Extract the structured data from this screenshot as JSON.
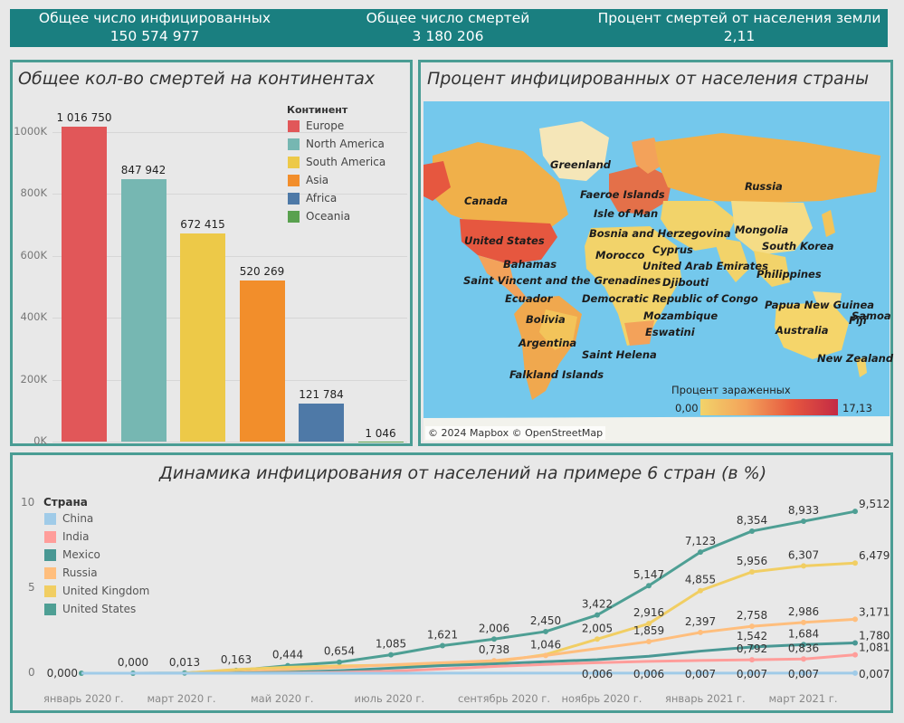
{
  "kpis": [
    {
      "label": "Общее число инфицированных",
      "value": "150 574 977"
    },
    {
      "label": "Общее число смертей",
      "value": "3 180 206"
    },
    {
      "label": "Процент смертей от населения земли",
      "value": "2,11"
    }
  ],
  "deaths_panel": {
    "title": "Общее кол-во смертей на континентах",
    "legend_title": "Континент",
    "y_ticks": [
      "0K",
      "200K",
      "400K",
      "600K",
      "800K",
      "1000K"
    ]
  },
  "map_panel": {
    "title": "Процент инфицированных от населения страны",
    "labels": [
      "Greenland",
      "Canada",
      "Faeroe Islands",
      "Isle of Man",
      "Russia",
      "United States",
      "Bosnia and Herzegovina",
      "Mongolia",
      "South Korea",
      "Cyprus",
      "Morocco",
      "United Arab Emirates",
      "Bahamas",
      "Philippines",
      "Djibouti",
      "Saint Vincent and the Grenadines",
      "Ecuador",
      "Democratic Republic of Congo",
      "Papua New Guinea",
      "Samoa",
      "Fiji",
      "Bolivia",
      "Mozambique",
      "Eswatini",
      "Australia",
      "Argentina",
      "Saint Helena",
      "New Zealand",
      "Falkland Islands"
    ],
    "legend_title": "Процент зараженных",
    "legend_min": "0,00",
    "legend_max": "17,13",
    "attribution": "© 2024 Mapbox © OpenStreetMap",
    "colors": {
      "ocean": "#74c8ec",
      "land_low": "#f2d36a",
      "land_high": "#c42a44"
    }
  },
  "line_panel": {
    "title": "Динамика инфицирования от населений на примере 6 стран (в %)",
    "legend_title": "Страна",
    "y_ticks": [
      "0",
      "5",
      "10"
    ],
    "x_ticks": [
      "январь 2020 г.",
      "март 2020 г.",
      "май 2020 г.",
      "июль 2020 г.",
      "сентябрь 2020 г.",
      "ноябрь 2020 г.",
      "январь 2021 г.",
      "март 2021 г."
    ]
  },
  "chart_data": [
    {
      "type": "bar",
      "title": "Общее кол-во смертей на континентах",
      "legend_title": "Континент",
      "categories": [
        "Europe",
        "North America",
        "South America",
        "Asia",
        "Africa",
        "Oceania"
      ],
      "values": [
        1016750,
        847942,
        672415,
        520269,
        121784,
        1046
      ],
      "value_labels": [
        "1 016 750",
        "847 942",
        "672 415",
        "520 269",
        "121 784",
        "1 046"
      ],
      "colors": [
        "#e15759",
        "#76b7b2",
        "#edc948",
        "#f28e2b",
        "#4e79a7",
        "#59a14f"
      ],
      "ylim": [
        0,
        1000000
      ],
      "legend_position": "top-right",
      "grid": true
    },
    {
      "type": "line",
      "title": "Динамика инфицирования от населений на примере 6 стран (в %)",
      "legend_title": "Страна",
      "x": [
        "2020-01-01",
        "2020-02-01",
        "2020-03-01",
        "2020-04-01",
        "2020-05-01",
        "2020-06-01",
        "2020-07-01",
        "2020-08-01",
        "2020-09-01",
        "2020-10-01",
        "2020-11-01",
        "2020-12-01",
        "2021-01-01",
        "2021-02-01",
        "2021-03-01",
        "2021-04-01"
      ],
      "ylim": [
        0,
        10
      ],
      "series": [
        {
          "name": "China",
          "color": "#a0cbe8",
          "values": [
            0,
            0,
            0,
            0,
            0,
            0.002,
            0.003,
            0.004,
            0.005,
            0.005,
            0.006,
            0.006,
            0.007,
            0.007,
            0.007,
            0.007
          ],
          "labels": [
            null,
            null,
            null,
            null,
            null,
            null,
            null,
            null,
            null,
            null,
            "0,006",
            "0,006",
            "0,007",
            "0,007",
            "0,007",
            "0,007"
          ]
        },
        {
          "name": "India",
          "color": "#ff9d9a",
          "values": [
            0,
            0,
            0,
            0,
            0.01,
            0.05,
            0.12,
            0.25,
            0.4,
            0.52,
            0.62,
            0.7,
            0.75,
            0.792,
            0.836,
            1.081
          ],
          "labels": [
            null,
            null,
            null,
            null,
            null,
            null,
            null,
            null,
            null,
            null,
            null,
            null,
            null,
            "0,792",
            "0,836",
            "1,081"
          ]
        },
        {
          "name": "Mexico",
          "color": "#499894",
          "values": [
            0,
            0,
            0,
            0.01,
            0.05,
            0.15,
            0.3,
            0.45,
            0.55,
            0.68,
            0.8,
            1.0,
            1.3,
            1.542,
            1.684,
            1.78
          ],
          "labels": [
            null,
            null,
            null,
            null,
            null,
            null,
            null,
            null,
            null,
            null,
            null,
            null,
            null,
            "1,542",
            "1,684",
            "1,780"
          ]
        },
        {
          "name": "Russia",
          "color": "#ffbe7d",
          "values": [
            0,
            0,
            0,
            0.05,
            0.2,
            0.35,
            0.5,
            0.62,
            0.738,
            1.046,
            1.45,
            1.859,
            2.397,
            2.758,
            2.986,
            3.171
          ],
          "labels": [
            null,
            null,
            null,
            null,
            null,
            null,
            null,
            null,
            "0,738",
            "1,046",
            null,
            "1,859",
            "2,397",
            "2,758",
            "2,986",
            "3,171"
          ]
        },
        {
          "name": "United Kingdom",
          "color": "#f1ce63",
          "values": [
            0,
            0,
            0.005,
            0.22,
            0.35,
            0.43,
            0.48,
            0.55,
            0.65,
            1.1,
            2.005,
            2.916,
            4.855,
            5.956,
            6.307,
            6.479
          ],
          "labels": [
            null,
            null,
            null,
            null,
            null,
            null,
            null,
            null,
            null,
            null,
            "2,005",
            "2,916",
            "4,855",
            "5,956",
            "6,307",
            "6,479"
          ]
        },
        {
          "name": "United States",
          "color": "#4e9f94",
          "values": [
            0,
            0,
            0.013,
            0.163,
            0.444,
            0.654,
            1.085,
            1.621,
            2.006,
            2.45,
            3.422,
            5.147,
            7.123,
            8.354,
            8.933,
            9.512
          ],
          "labels": [
            "0,000",
            "0,000",
            "0,013",
            "0,163",
            "0,444",
            "0,654",
            "1,085",
            "1,621",
            "2,006",
            "2,450",
            "3,422",
            "5,147",
            "7,123",
            "8,354",
            "8,933",
            "9,512"
          ]
        }
      ],
      "legend_position": "top-left",
      "grid": false
    }
  ]
}
